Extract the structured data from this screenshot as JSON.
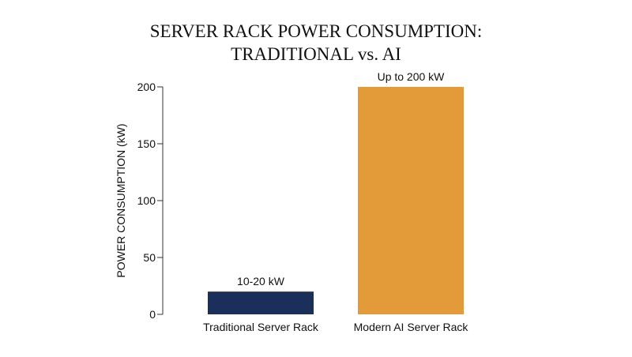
{
  "chart_data": {
    "type": "bar",
    "title_lines": [
      "SERVER RACK POWER CONSUMPTION:",
      "TRADITIONAL vs. AI"
    ],
    "ylabel": "POWER CONSUMPTION (kW)",
    "xlabel": "",
    "ylim": [
      0,
      200
    ],
    "yticks": [
      0,
      50,
      100,
      150,
      200
    ],
    "categories": [
      "Traditional Server Rack",
      "Modern AI Server Rack"
    ],
    "values": [
      20,
      200
    ],
    "range_low": [
      10,
      null
    ],
    "data_labels": [
      "10-20 kW",
      "Up to 200 kW"
    ],
    "colors": [
      "#1b2f5b",
      "#e39b3a"
    ],
    "grid": false,
    "legend": "none"
  }
}
